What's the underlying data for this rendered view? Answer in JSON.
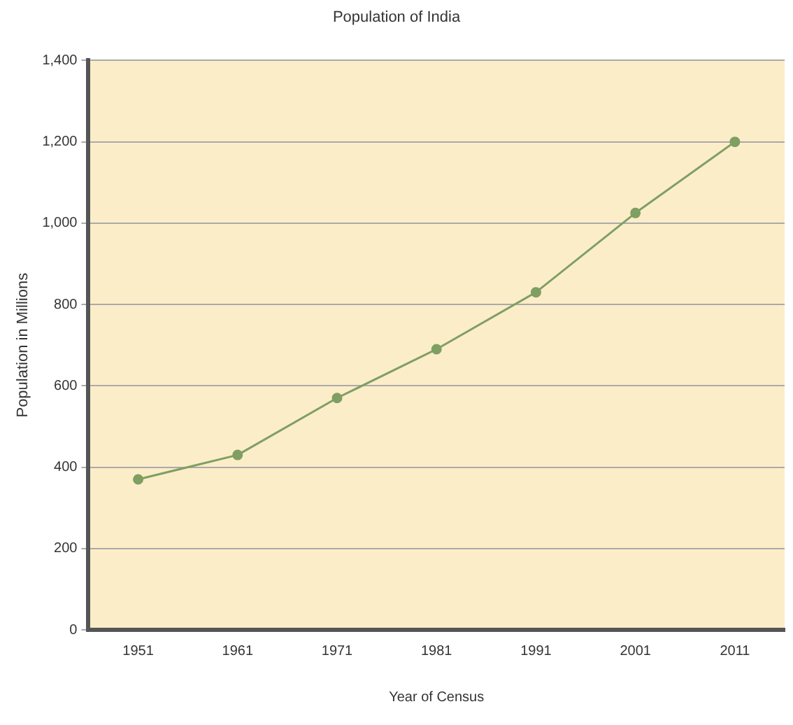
{
  "chart_data": {
    "type": "line",
    "title": "Population of India",
    "xlabel": "Year of Census",
    "ylabel": "Population in Millions",
    "categories": [
      "1951",
      "1961",
      "1971",
      "1981",
      "1991",
      "2001",
      "2011"
    ],
    "series": [
      {
        "color": "#7f9f63",
        "values": [
          370,
          430,
          570,
          690,
          830,
          1025,
          1200
        ]
      }
    ],
    "ylim": [
      0,
      1400
    ],
    "yticks": [
      0,
      200,
      400,
      600,
      800,
      {
        "value": 1000,
        "label": "1,000"
      },
      {
        "value": 1200,
        "label": "1,200"
      },
      {
        "value": 1400,
        "label": "1,400"
      }
    ],
    "grid": "y",
    "marker": "circle",
    "line_style": "solid",
    "legend": false
  }
}
